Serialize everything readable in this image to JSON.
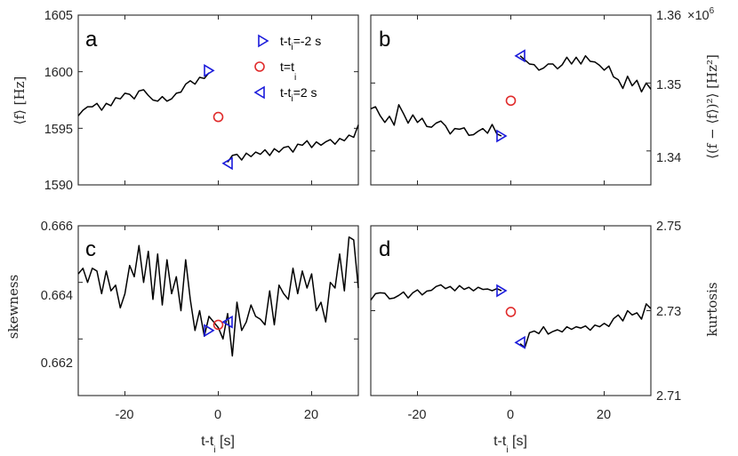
{
  "chart_data": [
    {
      "panel": "a",
      "type": "line",
      "xlabel": "",
      "ylabel": "⟨f⟩ [Hz]",
      "xlim": [
        -30,
        30
      ],
      "ylim": [
        1590,
        1605
      ],
      "xticks": [
        -20,
        0,
        20
      ],
      "yticks": [
        1590,
        1595,
        1600,
        1605
      ],
      "ytick_labels": [
        "1590",
        "1595",
        "1600",
        "1605"
      ],
      "series": [
        {
          "x": [
            -30,
            -29,
            -28,
            -27,
            -26,
            -25,
            -24,
            -23,
            -22,
            -21,
            -20,
            -19,
            -18,
            -17,
            -16,
            -15,
            -14,
            -13,
            -12,
            -11,
            -10,
            -9,
            -8,
            -7,
            -6,
            -5,
            -4,
            -3,
            -2
          ],
          "y": [
            1596.1,
            1596.6,
            1596.9,
            1596.9,
            1597.2,
            1596.6,
            1597.2,
            1597.0,
            1597.7,
            1597.6,
            1598.1,
            1598.0,
            1597.6,
            1598.3,
            1598.4,
            1597.9,
            1597.5,
            1597.4,
            1597.8,
            1597.4,
            1597.6,
            1598.1,
            1598.2,
            1598.9,
            1599.2,
            1598.9,
            1599.5,
            1599.4,
            1599.9
          ]
        },
        {
          "x": [
            2,
            3,
            4,
            5,
            6,
            7,
            8,
            9,
            10,
            11,
            12,
            13,
            14,
            15,
            16,
            17,
            18,
            19,
            20,
            21,
            22,
            23,
            24,
            25,
            26,
            27,
            28,
            29,
            30
          ],
          "y": [
            1592.0,
            1592.6,
            1592.7,
            1592.2,
            1592.8,
            1592.5,
            1592.9,
            1592.7,
            1593.1,
            1592.6,
            1593.2,
            1592.9,
            1593.3,
            1593.4,
            1592.9,
            1593.6,
            1593.5,
            1593.9,
            1593.3,
            1593.8,
            1593.5,
            1593.8,
            1594.0,
            1593.6,
            1594.1,
            1593.9,
            1594.4,
            1594.2,
            1595.3
          ]
        }
      ],
      "markers": [
        {
          "symbol": "triangle-right",
          "color": "#1a1adb",
          "x": -2,
          "y": 1600.1
        },
        {
          "symbol": "circle",
          "color": "#e02b2b",
          "x": 0,
          "y": 1596.0
        },
        {
          "symbol": "triangle-left",
          "color": "#1a1adb",
          "x": 2,
          "y": 1591.9
        }
      ],
      "legend": {
        "placement": "top-right",
        "entries": [
          {
            "symbol": "triangle-right",
            "color": "#1a1adb",
            "label": "t-t",
            "sub": "i",
            "after": "=-2 s"
          },
          {
            "symbol": "circle",
            "color": "#e02b2b",
            "label": "t=t",
            "sub": "i",
            "after": ""
          },
          {
            "symbol": "triangle-left",
            "color": "#1a1adb",
            "label": "t-t",
            "sub": "i",
            "after": "=2 s"
          }
        ]
      }
    },
    {
      "panel": "b",
      "type": "line",
      "xlabel": "",
      "ylabel": "⟨(f − ⟨f⟩)²⟩ [Hz²]",
      "xlim": [
        -30,
        30
      ],
      "ylim": [
        1.335,
        1.36
      ],
      "yaxis_side": "right",
      "y_multiplier": "×10^6",
      "xticks": [
        -20,
        0,
        20
      ],
      "yticks": [
        1.34,
        1.35,
        1.36
      ],
      "ytick_labels": [
        "1.34",
        "1.35",
        "1.36"
      ],
      "series": [
        {
          "x": [
            -30,
            -29,
            -28,
            -27,
            -26,
            -25,
            -24,
            -23,
            -22,
            -21,
            -20,
            -19,
            -18,
            -17,
            -16,
            -15,
            -14,
            -13,
            -12,
            -11,
            -10,
            -9,
            -8,
            -7,
            -6,
            -5,
            -4,
            -3,
            -2
          ],
          "y": [
            1.3462,
            1.3465,
            1.3452,
            1.3442,
            1.3451,
            1.3438,
            1.3468,
            1.3455,
            1.3441,
            1.3453,
            1.3442,
            1.3448,
            1.3436,
            1.3435,
            1.3441,
            1.3444,
            1.3437,
            1.3425,
            1.3433,
            1.3432,
            1.3434,
            1.3423,
            1.3424,
            1.3429,
            1.3433,
            1.3426,
            1.3439,
            1.3425,
            1.3422
          ]
        },
        {
          "x": [
            2,
            3,
            4,
            5,
            6,
            7,
            8,
            9,
            10,
            11,
            12,
            13,
            14,
            15,
            16,
            17,
            18,
            19,
            20,
            21,
            22,
            23,
            24,
            25,
            26,
            27,
            28,
            29,
            30
          ],
          "y": [
            1.354,
            1.3534,
            1.3528,
            1.3527,
            1.3519,
            1.3522,
            1.3528,
            1.3528,
            1.3521,
            1.3527,
            1.3538,
            1.3528,
            1.3538,
            1.3528,
            1.354,
            1.3532,
            1.3531,
            1.3526,
            1.3519,
            1.3525,
            1.3509,
            1.3505,
            1.3492,
            1.351,
            1.3496,
            1.3504,
            1.3487,
            1.35,
            1.3491
          ]
        }
      ],
      "markers": [
        {
          "symbol": "triangle-right",
          "color": "#1a1adb",
          "x": -2,
          "y": 1.3422
        },
        {
          "symbol": "circle",
          "color": "#e02b2b",
          "x": 0,
          "y": 1.3474
        },
        {
          "symbol": "triangle-left",
          "color": "#1a1adb",
          "x": 2,
          "y": 1.354
        }
      ]
    },
    {
      "panel": "c",
      "type": "line",
      "xlabel": "t-t",
      "xlabel_sub": "i",
      "xlabel_after": " [s]",
      "ylabel": "skewness",
      "xlim": [
        -30,
        30
      ],
      "ylim": [
        0.66,
        0.666
      ],
      "xticks": [
        -20,
        0,
        20
      ],
      "yticks": [
        0.662,
        0.664,
        0.666
      ],
      "ytick_labels": [
        "0.662",
        "0.664",
        "0.666"
      ],
      "series": [
        {
          "x": [
            -30,
            -29,
            -28,
            -27,
            -26,
            -25,
            -24,
            -23,
            -22,
            -21,
            -20,
            -19,
            -18,
            -17,
            -16,
            -15,
            -14,
            -13,
            -12,
            -11,
            -10,
            -9,
            -8,
            -7,
            -6,
            -5,
            -4,
            -3,
            -2,
            -1,
            0,
            1,
            2,
            3,
            4,
            5,
            6,
            7,
            8,
            9,
            10,
            11,
            12,
            13,
            14,
            15,
            16,
            17,
            18,
            19,
            20,
            21,
            22,
            23,
            24,
            25,
            26,
            27,
            28,
            29,
            30
          ],
          "y": [
            0.6643,
            0.6645,
            0.664,
            0.6645,
            0.6644,
            0.6636,
            0.6644,
            0.6637,
            0.6639,
            0.6631,
            0.6636,
            0.6646,
            0.6642,
            0.6653,
            0.664,
            0.6651,
            0.6634,
            0.665,
            0.6632,
            0.6648,
            0.6636,
            0.6642,
            0.663,
            0.6648,
            0.6634,
            0.6623,
            0.663,
            0.6621,
            0.6628,
            0.6626,
            0.6624,
            0.662,
            0.6629,
            0.6614,
            0.6633,
            0.6623,
            0.6626,
            0.6632,
            0.6628,
            0.6627,
            0.6625,
            0.6637,
            0.6625,
            0.6639,
            0.6636,
            0.6634,
            0.6645,
            0.6636,
            0.6644,
            0.6638,
            0.6643,
            0.663,
            0.6633,
            0.6626,
            0.664,
            0.6638,
            0.665,
            0.6637,
            0.6656,
            0.6655,
            0.6638
          ]
        }
      ],
      "markers": [
        {
          "symbol": "triangle-right",
          "color": "#1a1adb",
          "x": -2,
          "y": 0.6623
        },
        {
          "symbol": "circle",
          "color": "#e02b2b",
          "x": 0,
          "y": 0.6625
        },
        {
          "symbol": "triangle-left",
          "color": "#1a1adb",
          "x": 2,
          "y": 0.6626
        }
      ]
    },
    {
      "panel": "d",
      "type": "line",
      "xlabel": "t-t",
      "xlabel_sub": "i",
      "xlabel_after": " [s]",
      "ylabel": "kurtosis",
      "xlim": [
        -30,
        30
      ],
      "ylim": [
        2.71,
        2.75
      ],
      "yaxis_side": "right",
      "xticks": [
        -20,
        0,
        20
      ],
      "yticks": [
        2.71,
        2.73,
        2.75
      ],
      "ytick_labels": [
        "2.71",
        "2.73",
        "2.75"
      ],
      "series": [
        {
          "x": [
            -30,
            -29,
            -28,
            -27,
            -26,
            -25,
            -24,
            -23,
            -22,
            -21,
            -20,
            -19,
            -18,
            -17,
            -16,
            -15,
            -14,
            -13,
            -12,
            -11,
            -10,
            -9,
            -8,
            -7,
            -6,
            -5,
            -4,
            -3,
            -2
          ],
          "y": [
            2.7325,
            2.734,
            2.7342,
            2.7341,
            2.7328,
            2.733,
            2.7336,
            2.7344,
            2.733,
            2.7342,
            2.7349,
            2.7337,
            2.7346,
            2.7348,
            2.7357,
            2.7361,
            2.7352,
            2.7357,
            2.7347,
            2.7359,
            2.735,
            2.7355,
            2.7347,
            2.7355,
            2.735,
            2.7351,
            2.7347,
            2.7352,
            2.7347
          ]
        },
        {
          "x": [
            2,
            3,
            4,
            5,
            6,
            7,
            8,
            9,
            10,
            11,
            12,
            13,
            14,
            15,
            16,
            17,
            18,
            19,
            20,
            21,
            22,
            23,
            24,
            25,
            26,
            27,
            28,
            29,
            30
          ],
          "y": [
            2.7222,
            2.7213,
            2.7248,
            2.7252,
            2.7246,
            2.7262,
            2.7245,
            2.7251,
            2.7255,
            2.725,
            2.7262,
            2.7256,
            2.7262,
            2.7259,
            2.7264,
            2.7254,
            2.7266,
            2.7262,
            2.727,
            2.7263,
            2.7281,
            2.729,
            2.7276,
            2.73,
            2.729,
            2.7295,
            2.728,
            2.7316,
            2.7305
          ]
        }
      ],
      "markers": [
        {
          "symbol": "triangle-right",
          "color": "#1a1adb",
          "x": -2,
          "y": 2.7347
        },
        {
          "symbol": "circle",
          "color": "#e02b2b",
          "x": 0,
          "y": 2.7297
        },
        {
          "symbol": "triangle-left",
          "color": "#1a1adb",
          "x": 2,
          "y": 2.7225
        }
      ]
    }
  ],
  "line_color": "#000000",
  "frame_color": "#262626"
}
